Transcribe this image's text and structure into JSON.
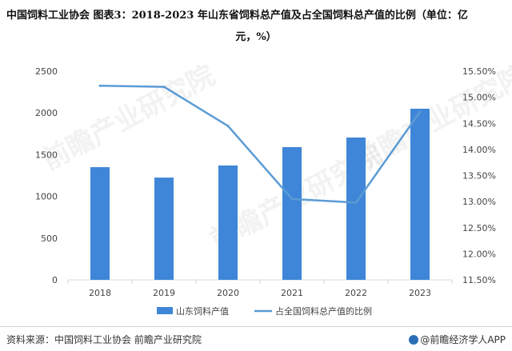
{
  "title": {
    "line1": "中国饲料工业协会  图表3：2018-2023 年山东省饲料总产值及占全国饲料总产值的比例（单位：亿",
    "line2": "元，%）"
  },
  "footer": {
    "source": "资料来源：中国饲料工业协会 前瞻产业研究院",
    "app": "@前瞻经济学人APP"
  },
  "colors": {
    "bar": "#3f86d8",
    "line": "#5b9bd5",
    "axis": "#d9d9d9"
  },
  "chart_data": {
    "type": "bar",
    "categories": [
      "2018",
      "2019",
      "2020",
      "2021",
      "2022",
      "2023"
    ],
    "series": [
      {
        "name": "山东饲料产值",
        "type": "bar",
        "axis": "left",
        "values": [
          1350,
          1225,
          1370,
          1590,
          1705,
          2050
        ]
      },
      {
        "name": "占全国饲料总产值的比例",
        "type": "line",
        "axis": "right",
        "values": [
          15.22,
          15.2,
          14.45,
          13.05,
          12.98,
          14.72
        ]
      }
    ],
    "y_left": {
      "ylim": [
        0,
        2500
      ],
      "ticks": [
        "0",
        "500",
        "1000",
        "1500",
        "2000",
        "2500"
      ]
    },
    "y_right": {
      "ylim": [
        11.5,
        15.5
      ],
      "ticks": [
        "11.50%",
        "12.00%",
        "12.50%",
        "13.00%",
        "13.50%",
        "14.00%",
        "14.50%",
        "15.00%",
        "15.50%"
      ]
    },
    "legend": "bottom",
    "grid": false
  }
}
